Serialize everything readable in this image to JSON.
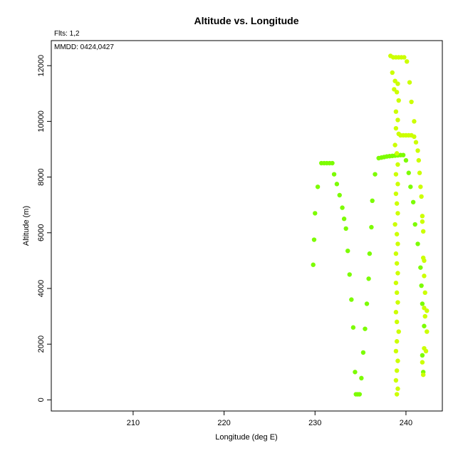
{
  "chart_data": {
    "type": "scatter",
    "title": "Altitude vs. Longitude",
    "xlabel": "Longitude (deg E)",
    "ylabel": "Altitude (m)",
    "annotations": {
      "flights": "Flts: 1,2",
      "dates": "MMDD: 0424,0427"
    },
    "xlim": [
      201,
      244
    ],
    "ylim": [
      -400,
      12900
    ],
    "x_ticks": [
      210,
      220,
      230,
      240
    ],
    "y_ticks": [
      0,
      2000,
      4000,
      6000,
      8000,
      10000,
      12000
    ],
    "grid": false,
    "legend": "none",
    "series": [
      {
        "color": "#7CFC00",
        "points": [
          [
            229.8,
            4850
          ],
          [
            229.9,
            5750
          ],
          [
            230.0,
            6700
          ],
          [
            230.3,
            7650
          ],
          [
            230.7,
            8500
          ],
          [
            231.0,
            8500
          ],
          [
            231.3,
            8500
          ],
          [
            231.6,
            8500
          ],
          [
            231.9,
            8500
          ],
          [
            232.1,
            8100
          ],
          [
            232.4,
            7750
          ],
          [
            232.7,
            7350
          ],
          [
            233.0,
            6900
          ],
          [
            233.2,
            6500
          ],
          [
            233.4,
            6150
          ],
          [
            233.6,
            5350
          ],
          [
            233.8,
            4500
          ],
          [
            234.0,
            3600
          ],
          [
            234.2,
            2600
          ],
          [
            234.4,
            1000
          ],
          [
            234.5,
            200
          ],
          [
            234.7,
            200
          ],
          [
            234.9,
            200
          ],
          [
            235.1,
            780
          ],
          [
            235.3,
            1700
          ],
          [
            235.5,
            2550
          ],
          [
            235.7,
            3450
          ],
          [
            235.9,
            4350
          ],
          [
            236.0,
            5250
          ],
          [
            236.2,
            6200
          ],
          [
            236.3,
            7150
          ],
          [
            236.6,
            8100
          ],
          [
            237.0,
            8680
          ],
          [
            237.3,
            8700
          ],
          [
            237.6,
            8720
          ],
          [
            237.9,
            8740
          ],
          [
            238.2,
            8750
          ],
          [
            238.5,
            8760
          ],
          [
            238.8,
            8770
          ],
          [
            239.1,
            8780
          ],
          [
            239.4,
            8790
          ],
          [
            239.7,
            8790
          ],
          [
            240.0,
            8600
          ],
          [
            240.3,
            8150
          ],
          [
            240.5,
            7650
          ],
          [
            240.8,
            7100
          ],
          [
            241.0,
            6300
          ],
          [
            241.3,
            5600
          ],
          [
            241.6,
            4750
          ],
          [
            241.7,
            4100
          ],
          [
            241.8,
            3450
          ],
          [
            242.0,
            2650
          ],
          [
            241.8,
            1600
          ],
          [
            241.9,
            1000
          ]
        ]
      },
      {
        "color": "#CCFF00",
        "points": [
          [
            238.3,
            12350
          ],
          [
            238.6,
            12300
          ],
          [
            238.9,
            12300
          ],
          [
            239.2,
            12300
          ],
          [
            239.5,
            12300
          ],
          [
            239.8,
            12300
          ],
          [
            240.1,
            12150
          ],
          [
            238.5,
            11750
          ],
          [
            238.8,
            11450
          ],
          [
            240.4,
            11400
          ],
          [
            238.7,
            11150
          ],
          [
            239.1,
            11350
          ],
          [
            239.0,
            11050
          ],
          [
            239.2,
            10750
          ],
          [
            238.9,
            10350
          ],
          [
            239.1,
            10050
          ],
          [
            238.9,
            9750
          ],
          [
            239.2,
            9550
          ],
          [
            239.4,
            9500
          ],
          [
            239.7,
            9500
          ],
          [
            240.0,
            9500
          ],
          [
            240.3,
            9500
          ],
          [
            240.6,
            9500
          ],
          [
            240.9,
            9450
          ],
          [
            240.6,
            10700
          ],
          [
            240.9,
            10000
          ],
          [
            241.1,
            9250
          ],
          [
            241.3,
            8950
          ],
          [
            241.4,
            8600
          ],
          [
            241.5,
            8150
          ],
          [
            241.6,
            7650
          ],
          [
            241.7,
            7300
          ],
          [
            241.8,
            6600
          ],
          [
            241.8,
            6400
          ],
          [
            241.9,
            6050
          ],
          [
            241.9,
            5100
          ],
          [
            242.0,
            5000
          ],
          [
            242.0,
            4450
          ],
          [
            242.1,
            3850
          ],
          [
            242.0,
            3300
          ],
          [
            242.3,
            3200
          ],
          [
            242.1,
            3000
          ],
          [
            242.3,
            2450
          ],
          [
            242.0,
            1850
          ],
          [
            242.2,
            1750
          ],
          [
            241.8,
            1350
          ],
          [
            241.9,
            900
          ],
          [
            238.8,
            9150
          ],
          [
            239.0,
            8850
          ],
          [
            239.1,
            8450
          ],
          [
            238.9,
            8100
          ],
          [
            239.1,
            7750
          ],
          [
            238.9,
            7400
          ],
          [
            239.0,
            7050
          ],
          [
            239.1,
            6700
          ],
          [
            238.8,
            6300
          ],
          [
            239.0,
            5950
          ],
          [
            239.1,
            5600
          ],
          [
            238.9,
            5250
          ],
          [
            239.0,
            4900
          ],
          [
            239.1,
            4550
          ],
          [
            238.9,
            4200
          ],
          [
            239.0,
            3850
          ],
          [
            239.1,
            3500
          ],
          [
            238.9,
            3150
          ],
          [
            239.0,
            2800
          ],
          [
            239.2,
            2450
          ],
          [
            239.0,
            2100
          ],
          [
            238.9,
            1750
          ],
          [
            239.1,
            1400
          ],
          [
            239.0,
            1050
          ],
          [
            238.9,
            700
          ],
          [
            239.1,
            400
          ],
          [
            239.0,
            200
          ]
        ]
      }
    ]
  }
}
